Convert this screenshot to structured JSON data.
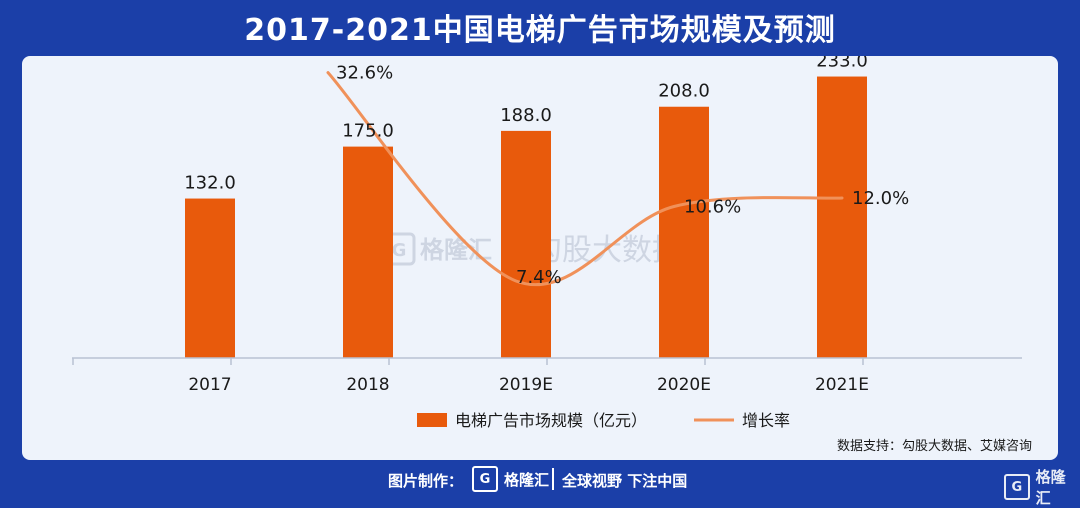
{
  "title": "2017-2021中国电梯广告市场规模及预测",
  "chart_data": {
    "type": "bar",
    "categories": [
      "2017",
      "2018",
      "2019E",
      "2020E",
      "2021E"
    ],
    "series": [
      {
        "name": "电梯广告市场规模（亿元）",
        "type": "bar",
        "values": [
          132.0,
          175.0,
          188.0,
          208.0,
          233.0
        ],
        "color": "#e85a0c"
      },
      {
        "name": "增长率",
        "type": "line",
        "values": [
          null,
          32.6,
          7.4,
          10.6,
          12.0
        ],
        "unit": "%",
        "color": "#f0915a"
      }
    ],
    "bar_labels": [
      "132.0",
      "175.0",
      "188.0",
      "208.0",
      "233.0"
    ],
    "line_labels": [
      "",
      "32.6%",
      "7.4%",
      "10.6%",
      "12.0%"
    ],
    "ylim": [
      0,
      250
    ],
    "y2lim": [
      0,
      35
    ],
    "legend_position": "bottom",
    "grid": false
  },
  "watermark": {
    "brand": "格隆汇",
    "partner": "勾股大数据"
  },
  "source": "数据支持：勾股大数据、艾媒咨询",
  "footer": {
    "made_by": "图片制作：",
    "brand": "格隆汇",
    "logo_glyph": "G",
    "slogan": "全球视野 下注中国"
  }
}
